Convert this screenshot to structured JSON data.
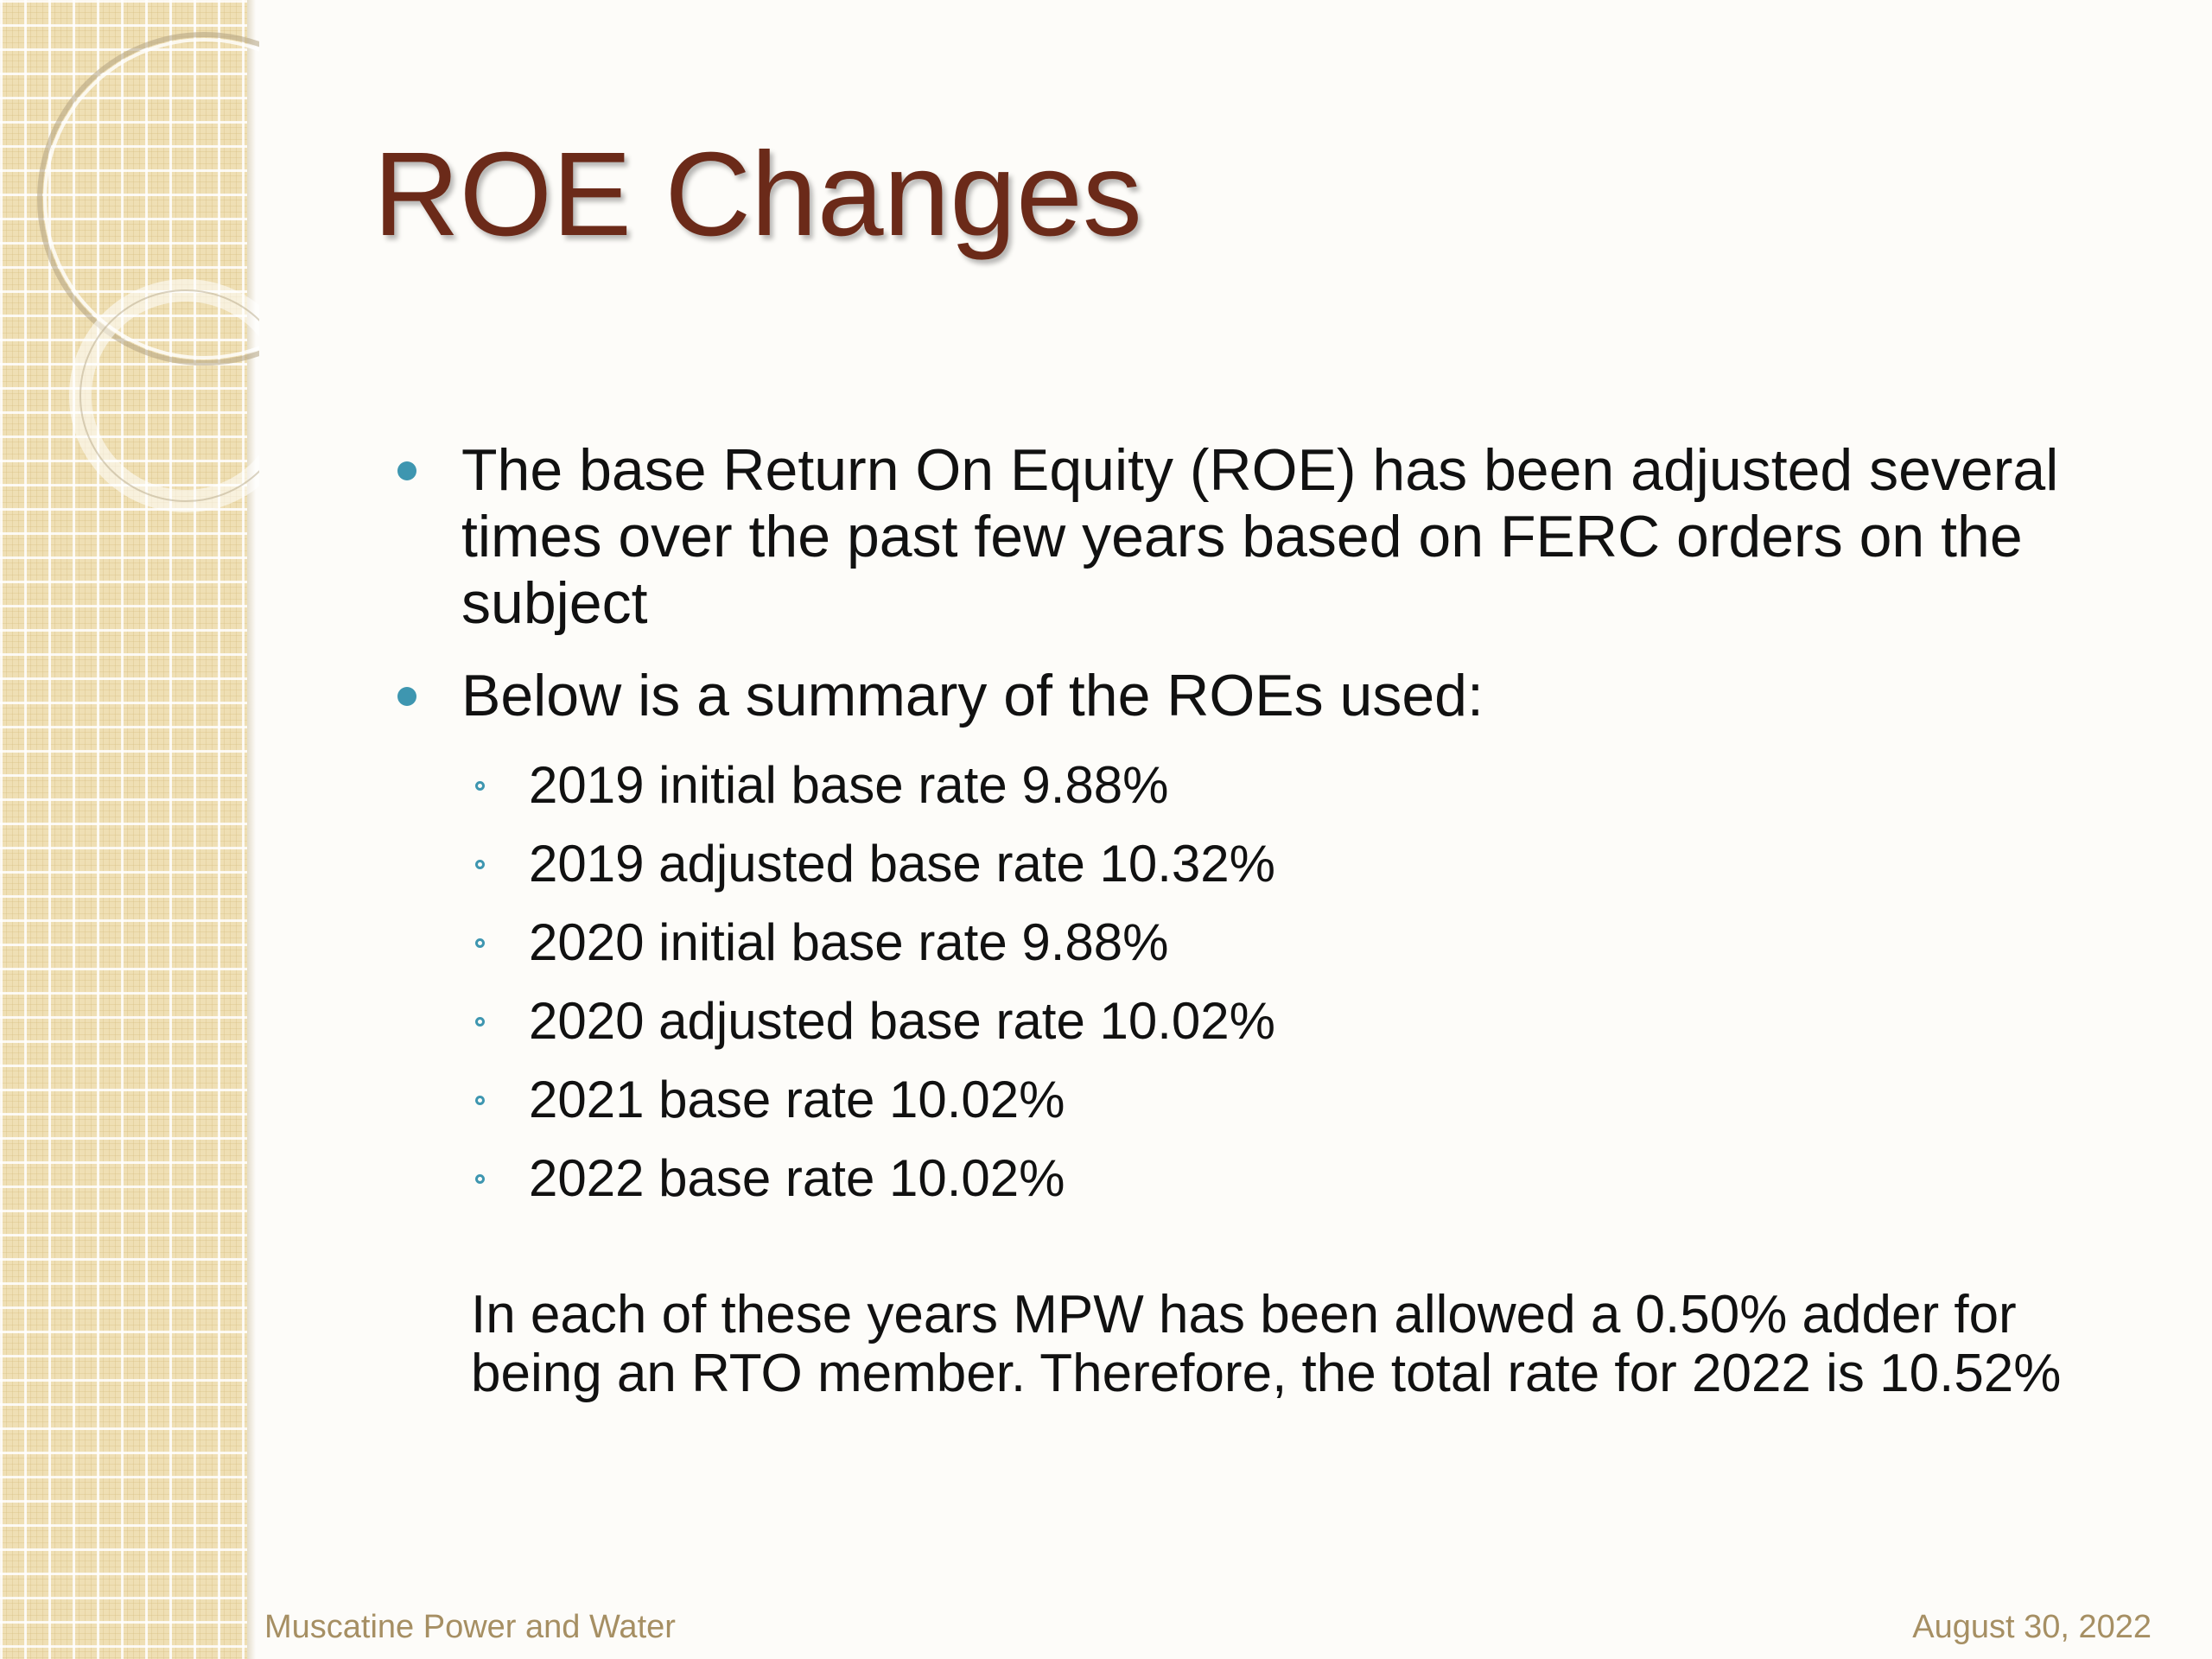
{
  "slide": {
    "title": "ROE Changes",
    "bullets": [
      "The base Return On Equity (ROE) has been adjusted several times over the past few years based on FERC orders on the subject",
      "Below is a summary of the ROEs used:"
    ],
    "sub_bullets": [
      "2019 initial base rate 9.88%",
      "2019 adjusted base rate 10.32%",
      "2020 initial base rate 9.88%",
      "2020 adjusted base rate 10.02%",
      "2021 base rate 10.02%",
      "2022 base rate 10.02%"
    ],
    "note": "In each of these years MPW has been allowed a 0.50% adder for being an RTO member.  Therefore, the total rate for 2022 is 10.52%",
    "footer": {
      "left": "Muscatine Power and Water",
      "right": "August 30, 2022"
    }
  },
  "colors": {
    "title": "#6b2a19",
    "bullet_accent": "#3e96b0",
    "footer_text": "#a68f63",
    "side_strip": "#efdfb4"
  }
}
